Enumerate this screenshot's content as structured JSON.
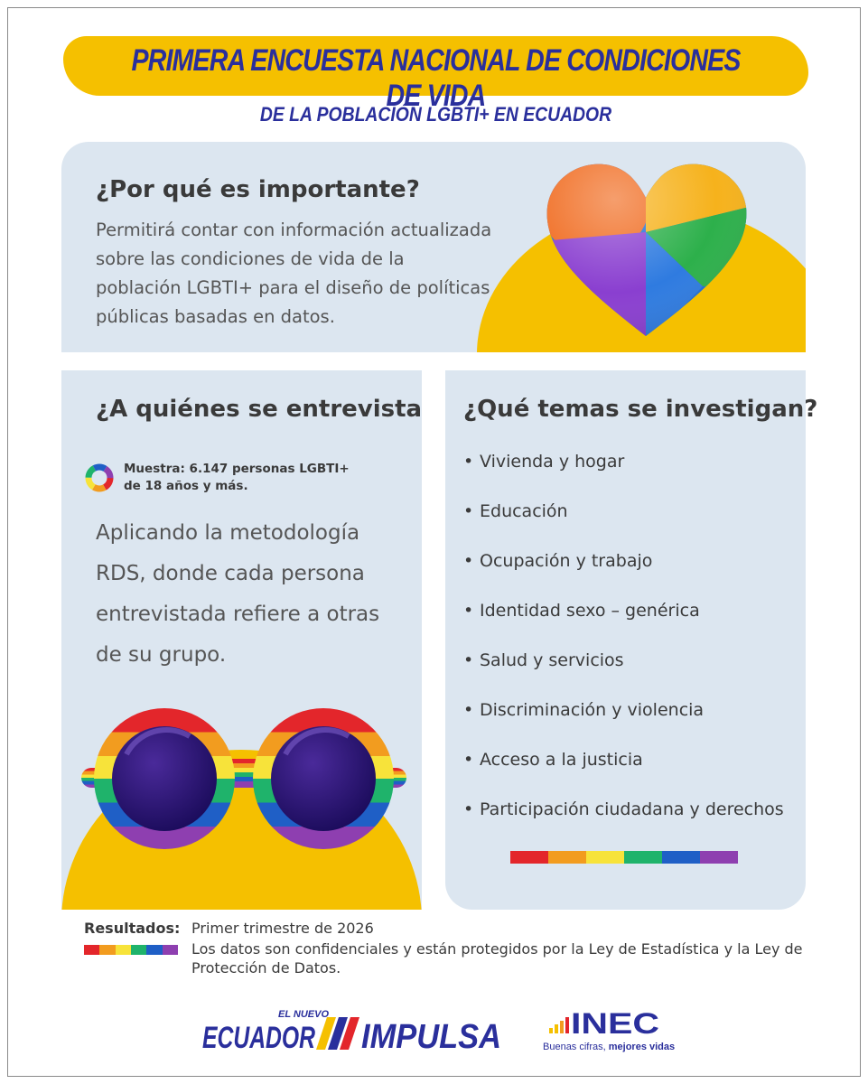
{
  "header": {
    "title": "PRIMERA ENCUESTA NACIONAL DE CONDICIONES DE VIDA",
    "subtitle": "DE LA POBLACIÓN LGBTI+ EN ECUADOR"
  },
  "importance": {
    "heading": "¿Por qué es importante?",
    "body": "Permitirá contar con información actualizada sobre las condiciones de vida de la población LGBTI+  para el diseño de políticas públicas basadas en datos.",
    "icon": "rainbow-heart-icon"
  },
  "interviewees": {
    "heading": "¿A quiénes se entrevista?",
    "sample_line1": "Muestra: 6.147 personas LGBTI+",
    "sample_line2": "de 18 años y más.",
    "body": "Aplicando la metodología RDS, donde cada persona entrevistada refiere a otras de su grupo.",
    "icon": "rainbow-sunglasses-icon"
  },
  "topics": {
    "heading": "¿Qué temas se investigan?",
    "items": [
      "Vivienda y hogar",
      "Educación",
      "Ocupación y trabajo",
      "Identidad sexo – genérica",
      "Salud y servicios",
      "Discriminación y violencia",
      "Acceso a la justicia",
      "Participación ciudadana y derechos"
    ]
  },
  "results": {
    "label": "Resultados:",
    "date": "Primer trimestre de 2026",
    "note": "Los datos son confidenciales y están protegidos por la Ley de Estadística y la Ley de Protección de Datos."
  },
  "logos": {
    "impulsa_small": "EL NUEVO",
    "impulsa_left": "ECUADOR",
    "impulsa_right": "IMPULSA",
    "inec_name": "INEC",
    "inec_tagline_a": "Buenas cifras,",
    "inec_tagline_b": " mejores vidas"
  },
  "colors": {
    "yellow": "#f5c000",
    "navy": "#2a2f9c",
    "panel": "#dce6f0",
    "rainbow": [
      "#e3262b",
      "#f29c1f",
      "#f7e33a",
      "#1fb36b",
      "#1f5fc6",
      "#8e3fb0"
    ]
  }
}
